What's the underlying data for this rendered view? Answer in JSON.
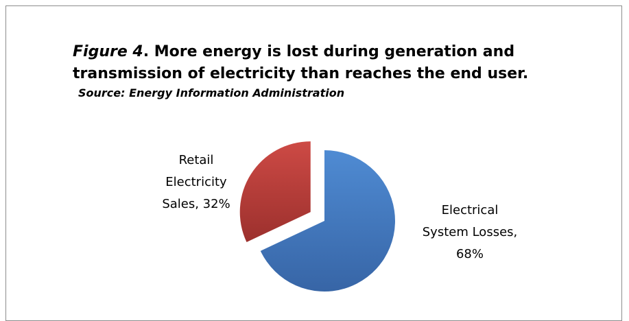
{
  "figure": {
    "title_prefix": "Figure 4",
    "title_text": ".  More energy is lost during generation and transmission of electricity than reaches the end user.",
    "source": "Source:  Energy Information Administration"
  },
  "colors": {
    "electrical_losses": "#4a80c4",
    "retail_sales": "#c0504d",
    "frame_border": "#8c8c8c"
  },
  "chart_data": {
    "type": "pie",
    "title": "Figure 4.  More energy is lost during generation and transmission of electricity than reaches the end user.",
    "slices": [
      {
        "name": "Electrical System Losses",
        "value": 68,
        "label_lines": [
          "Electrical",
          "System Losses,",
          "68%"
        ],
        "color": "#4a80c4",
        "exploded": false
      },
      {
        "name": "Retail Electricity Sales",
        "value": 32,
        "label_lines": [
          "Retail",
          "Electricity",
          "Sales, 32%"
        ],
        "color": "#c0504d",
        "exploded": true
      }
    ]
  }
}
